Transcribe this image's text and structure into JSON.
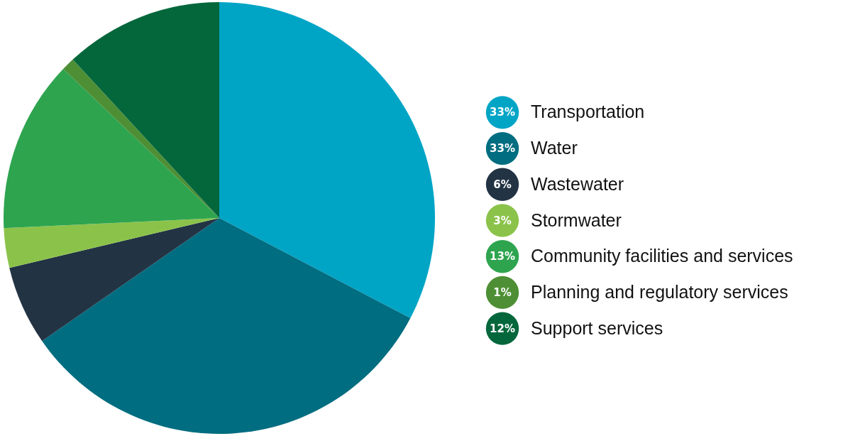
{
  "chart_data": {
    "type": "pie",
    "categories": [
      "Transportation",
      "Water",
      "Wastewater",
      "Stormwater",
      "Community facilities and services",
      "Planning and regulatory services",
      "Support services"
    ],
    "values": [
      33,
      33,
      6,
      3,
      13,
      1,
      12
    ],
    "colors": [
      "#00a5c6",
      "#006d80",
      "#223344",
      "#8bc34a",
      "#2ea44f",
      "#4e8f35",
      "#04673c"
    ],
    "value_labels": [
      "33%",
      "33%",
      "6%",
      "3%",
      "13%",
      "1%",
      "12%"
    ],
    "legend": "right"
  }
}
